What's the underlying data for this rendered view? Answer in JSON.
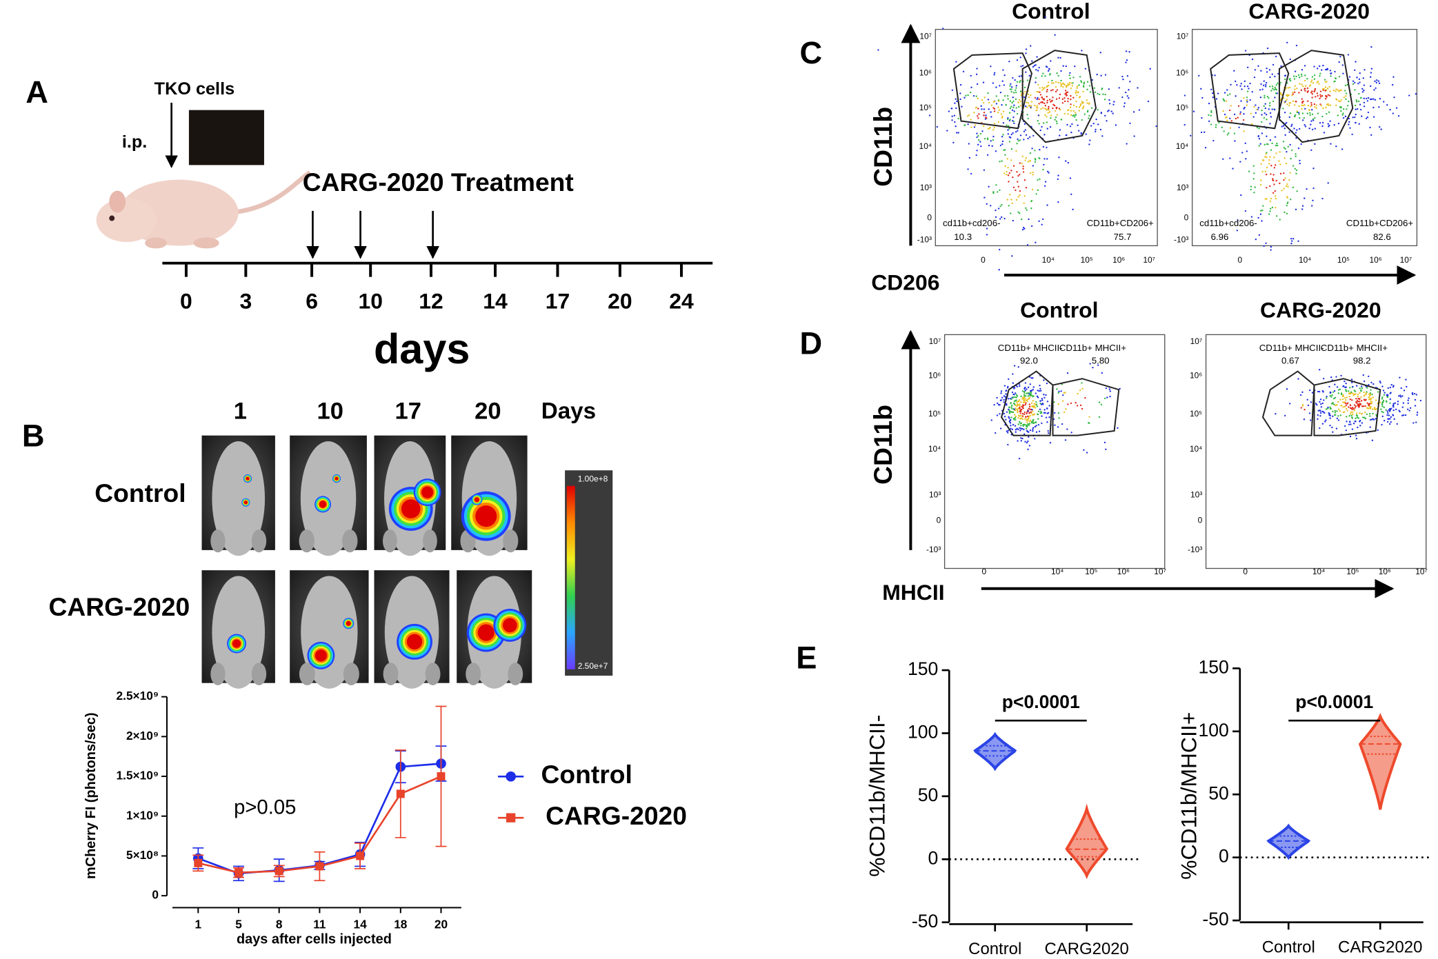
{
  "panel_labels": [
    "A",
    "B",
    "C",
    "D",
    "E"
  ],
  "panel_a": {
    "cells_label": "TKO cells",
    "route": "i.p.",
    "treatment": "CARG-2020 Treatment",
    "timeline": [
      0,
      3,
      6,
      10,
      12,
      14,
      17,
      20,
      24
    ],
    "axis_label": "days"
  },
  "panel_b": {
    "days": [
      1,
      10,
      17,
      20
    ],
    "days_label": "Days",
    "rows": [
      "Control",
      "CARG-2020"
    ],
    "scale_max": "1.00e+8",
    "scale_min": "2.50e+7"
  },
  "flow_c": {
    "y_label": "CD11b",
    "x_label": "CD206",
    "yticks": [
      "10⁷",
      "10⁶",
      "10⁵",
      "10⁴",
      "10³",
      "0",
      "-10³"
    ],
    "xticks": [
      "0",
      "10⁴",
      "10⁵",
      "10⁶",
      "10⁷"
    ],
    "plots": [
      {
        "title": "Control",
        "gates": [
          {
            "label": "cd11b+cd206-",
            "value": "10.3"
          },
          {
            "label": "CD11b+CD206+",
            "value": "75.7"
          }
        ]
      },
      {
        "title": "CARG-2020",
        "gates": [
          {
            "label": "cd11b+cd206-",
            "value": "6.96"
          },
          {
            "label": "CD11b+CD206+",
            "value": "82.6"
          }
        ]
      }
    ]
  },
  "flow_d": {
    "y_label": "CD11b",
    "x_label": "MHCII",
    "yticks": [
      "10⁷",
      "10⁶",
      "10⁵",
      "10⁴",
      "10³",
      "0",
      "-10³"
    ],
    "xticks": [
      "0",
      "10⁴",
      "10⁵",
      "10⁶",
      "10⁷"
    ],
    "plots": [
      {
        "title": "Control",
        "gates": [
          {
            "label": "CD11b+ MHCII-",
            "value": "92.0"
          },
          {
            "label": "CD11b+ MHCII+",
            "value": "5.80"
          }
        ]
      },
      {
        "title": "CARG-2020",
        "gates": [
          {
            "label": "CD11b+ MHCII-",
            "value": "0.67"
          },
          {
            "label": "CD11b+ MHCII+",
            "value": "98.2"
          }
        ]
      }
    ]
  },
  "chart_data": [
    {
      "type": "line",
      "x_label": "days after cells injected",
      "y_label": "mCherry FI (photons/sec)",
      "annotation": "p>0.05",
      "categories": [
        1,
        5,
        8,
        11,
        14,
        18,
        20
      ],
      "ylim": [
        0,
        2500000000
      ],
      "yticks": [
        0,
        {
          "value": 500000000,
          "label": "5×10⁸"
        },
        {
          "value": 1000000000,
          "label": "1×10⁹"
        },
        {
          "value": 1500000000,
          "label": "1.5×10⁹"
        },
        {
          "value": 2000000000,
          "label": "2×10⁹"
        },
        {
          "value": 2500000000,
          "label": "2.5×10⁹"
        }
      ],
      "legend": "right",
      "series": [
        {
          "name": "Control",
          "color": "#1d2de8",
          "marker": "circle",
          "values": [
            470000000,
            280000000,
            320000000,
            380000000,
            520000000,
            1620000000,
            1660000000
          ],
          "errors": [
            130000000,
            90000000,
            140000000,
            50000000,
            150000000,
            200000000,
            220000000
          ]
        },
        {
          "name": "CARG-2020",
          "color": "#e8432b",
          "marker": "square",
          "values": [
            410000000,
            290000000,
            310000000,
            370000000,
            500000000,
            1280000000,
            1500000000
          ],
          "errors": [
            100000000,
            60000000,
            70000000,
            180000000,
            160000000,
            550000000,
            880000000
          ]
        }
      ]
    },
    {
      "type": "violin",
      "y_label": "%CD11b/MHCII-",
      "annotation": "p<0.0001",
      "categories": [
        "Control",
        "CARG2020"
      ],
      "colors": [
        "#2b44e6",
        "#ee4a2c"
      ],
      "stats": [
        {
          "min": 72,
          "q1": 82,
          "median": 86,
          "q3": 90,
          "max": 99
        },
        {
          "min": -13,
          "q1": 2,
          "median": 8,
          "q3": 16,
          "max": 40
        }
      ],
      "ylim": [
        -50,
        150
      ],
      "yticks": [
        -50,
        0,
        50,
        100,
        150
      ],
      "zero_line": true
    },
    {
      "type": "violin",
      "y_label": "%CD11b/MHCII+",
      "annotation": "p<0.0001",
      "categories": [
        "Control",
        "CARG2020"
      ],
      "colors": [
        "#2b44e6",
        "#ee4a2c"
      ],
      "stats": [
        {
          "min": 0,
          "q1": 8,
          "median": 13,
          "q3": 17,
          "max": 25
        },
        {
          "min": 38,
          "q1": 82,
          "median": 90,
          "q3": 96,
          "max": 112
        }
      ],
      "ylim": [
        -50,
        150
      ],
      "yticks": [
        -50,
        0,
        50,
        100,
        150
      ],
      "zero_line": true
    }
  ]
}
